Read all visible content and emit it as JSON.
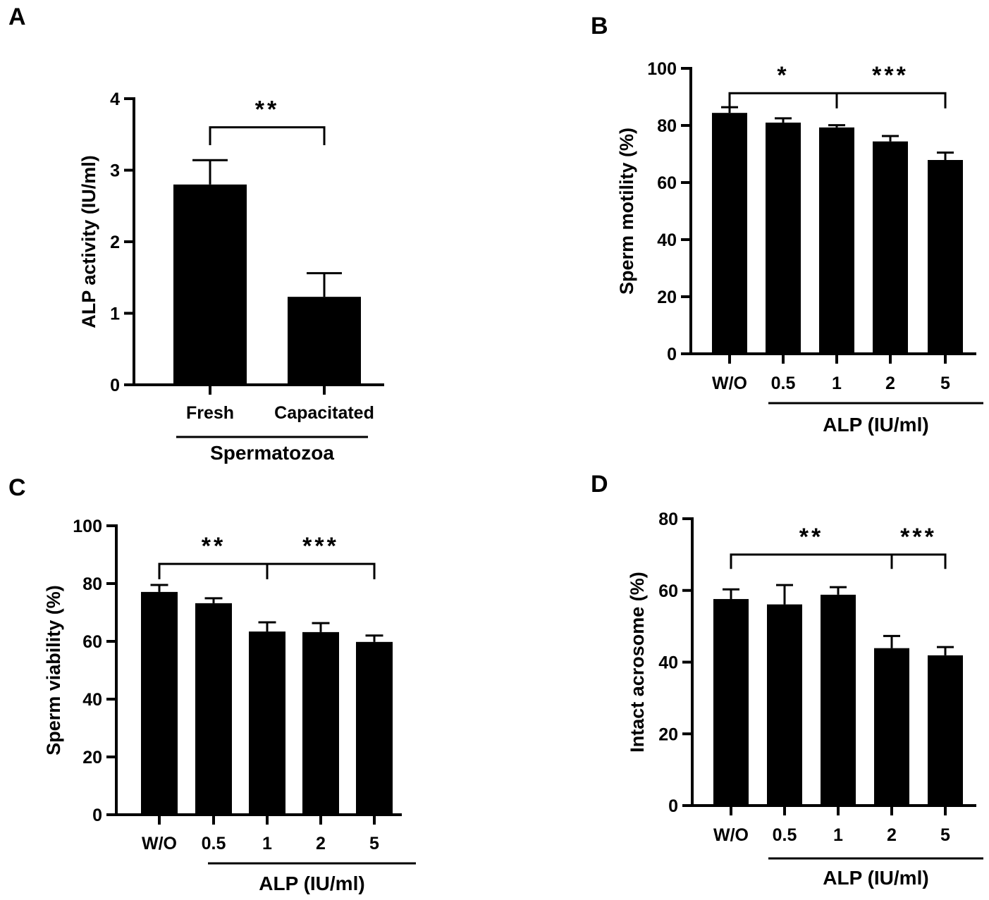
{
  "chart_data": [
    {
      "panel": "A",
      "type": "bar",
      "title": "",
      "ylabel": "ALP activity (IU/ml)",
      "xlabel": "Spermatozoa",
      "categories": [
        "Fresh",
        "Capacitated"
      ],
      "values": [
        2.8,
        1.23
      ],
      "error_upper": [
        3.14,
        1.56
      ],
      "ylim": [
        0,
        4
      ],
      "yticks": [
        0,
        1,
        2,
        3,
        4
      ],
      "significance": [
        {
          "from": 0,
          "to": 1,
          "mid": null,
          "level": 3.6,
          "drop": 3.35,
          "labels": [
            {
              "text": "**",
              "at": 0.5
            }
          ]
        }
      ]
    },
    {
      "panel": "B",
      "type": "bar",
      "title": "",
      "ylabel": "Sperm motility (%)",
      "xlabel": "ALP (IU/ml)",
      "categories": [
        "W/O",
        "0.5",
        "1",
        "2",
        "5"
      ],
      "values": [
        84.4,
        81.0,
        79.3,
        74.4,
        67.9
      ],
      "error_upper": [
        86.4,
        82.5,
        80.1,
        76.3,
        70.5
      ],
      "ylim": [
        0,
        100
      ],
      "yticks": [
        0,
        20,
        40,
        60,
        80,
        100
      ],
      "significance": [
        {
          "from": 0,
          "to": 4,
          "mid": 2,
          "level": 91.3,
          "drop": 86.0,
          "labels": [
            {
              "text": "*",
              "at": 1
            },
            {
              "text": "***",
              "at": 3
            }
          ]
        }
      ]
    },
    {
      "panel": "C",
      "type": "bar",
      "title": "",
      "ylabel": "Sperm viability (%)",
      "xlabel": "ALP (IU/ml)",
      "categories": [
        "W/O",
        "0.5",
        "1",
        "2",
        "5"
      ],
      "values": [
        77.1,
        73.2,
        63.4,
        63.2,
        59.8
      ],
      "error_upper": [
        79.5,
        74.9,
        66.6,
        66.3,
        62.0
      ],
      "ylim": [
        0,
        100
      ],
      "yticks": [
        0,
        20,
        40,
        60,
        80,
        100
      ],
      "significance": [
        {
          "from": 0,
          "to": 4,
          "mid": 2,
          "level": 86.8,
          "drop": 81.5,
          "labels": [
            {
              "text": "**",
              "at": 1
            },
            {
              "text": "***",
              "at": 3
            }
          ]
        }
      ]
    },
    {
      "panel": "D",
      "type": "bar",
      "title": "",
      "ylabel": "Intact acrosome (%)",
      "xlabel": "ALP (IU/ml)",
      "categories": [
        "W/O",
        "0.5",
        "1",
        "2",
        "5"
      ],
      "values": [
        57.6,
        56.1,
        58.8,
        43.9,
        41.9
      ],
      "error_upper": [
        60.3,
        61.5,
        60.9,
        47.3,
        44.2
      ],
      "ylim": [
        0,
        80
      ],
      "yticks": [
        0,
        20,
        40,
        60,
        80
      ],
      "significance": [
        {
          "from": 0,
          "to": 4,
          "mid": 3,
          "level": 70.0,
          "drop": 66.0,
          "labels": [
            {
              "text": "**",
              "at": 1.5
            },
            {
              "text": "***",
              "at": 3.5
            }
          ]
        }
      ]
    }
  ]
}
